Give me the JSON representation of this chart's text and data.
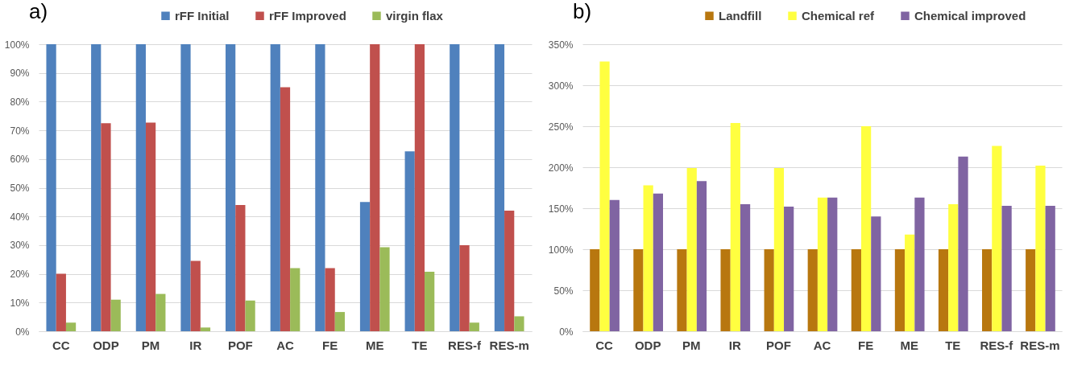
{
  "chart_data": [
    {
      "type": "bar",
      "title": "a)",
      "legend": "top",
      "grid": "y",
      "categories": [
        "CC",
        "ODP",
        "PM",
        "IR",
        "POF",
        "AC",
        "FE",
        "ME",
        "TE",
        "RES-f",
        "RES-m"
      ],
      "ylim": [
        0,
        100
      ],
      "yticks": [
        {
          "value": 0,
          "label": "0%"
        },
        {
          "value": 10,
          "label": "10%"
        },
        {
          "value": 20,
          "label": "20%"
        },
        {
          "value": 30,
          "label": "30%"
        },
        {
          "value": 40,
          "label": "40%"
        },
        {
          "value": 50,
          "label": "50%"
        },
        {
          "value": 60,
          "label": "60%"
        },
        {
          "value": 70,
          "label": "70%"
        },
        {
          "value": 80,
          "label": "80%"
        },
        {
          "value": 90,
          "label": "90%"
        },
        {
          "value": 100,
          "label": "100%"
        }
      ],
      "series": [
        {
          "name": "rFF Initial",
          "color": "#4f81bd",
          "values": [
            100,
            100,
            100,
            100,
            100,
            100,
            100,
            45,
            62.7,
            100,
            100
          ]
        },
        {
          "name": "rFF Improved",
          "color": "#c0504d",
          "values": [
            20,
            72.5,
            72.7,
            24.5,
            44,
            85,
            22,
            100,
            100,
            30,
            42
          ]
        },
        {
          "name": "virgin flax",
          "color": "#9bbb59",
          "values": [
            3,
            11,
            13,
            1.3,
            10.7,
            22,
            6.7,
            29.3,
            20.7,
            3,
            5.2
          ]
        }
      ]
    },
    {
      "type": "bar",
      "title": "b)",
      "legend": "top",
      "grid": "y",
      "categories": [
        "CC",
        "ODP",
        "PM",
        "IR",
        "POF",
        "AC",
        "FE",
        "ME",
        "TE",
        "RES-f",
        "RES-m"
      ],
      "ylim": [
        0,
        350
      ],
      "yticks": [
        {
          "value": 0,
          "label": "0%"
        },
        {
          "value": 50,
          "label": "50%"
        },
        {
          "value": 100,
          "label": "100%"
        },
        {
          "value": 150,
          "label": "150%"
        },
        {
          "value": 200,
          "label": "200%"
        },
        {
          "value": 250,
          "label": "250%"
        },
        {
          "value": 300,
          "label": "300%"
        },
        {
          "value": 350,
          "label": "350%"
        }
      ],
      "series": [
        {
          "name": "Landfill",
          "color": "#b8770f",
          "values": [
            100,
            100,
            100,
            100,
            100,
            100,
            100,
            100,
            100,
            100,
            100
          ]
        },
        {
          "name": "Chemical ref",
          "color": "#ffff40",
          "values": [
            329,
            178,
            199,
            254,
            199,
            163,
            250,
            118,
            155,
            226,
            202
          ]
        },
        {
          "name": "Chemical improved",
          "color": "#8064a2",
          "values": [
            160,
            168,
            183,
            155,
            152,
            163,
            140,
            163,
            213,
            153,
            153
          ]
        }
      ]
    }
  ]
}
